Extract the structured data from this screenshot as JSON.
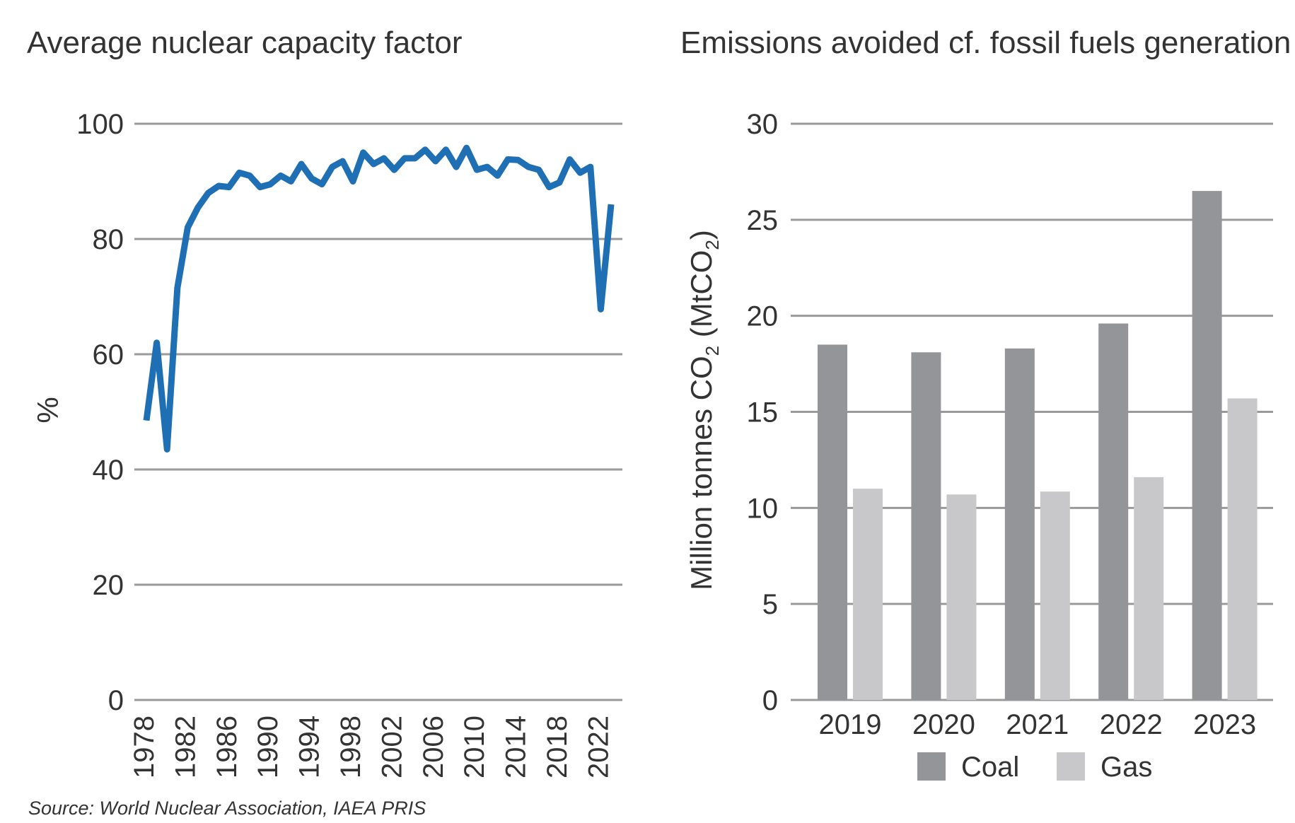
{
  "source": "Source: World Nuclear Association, IAEA PRIS",
  "chart_data": [
    {
      "type": "line",
      "title": "Average nuclear capacity factor",
      "xlabel": "",
      "ylabel": "%",
      "ylim": [
        0,
        100
      ],
      "yticks": [
        "0",
        "20",
        "40",
        "60",
        "80",
        "100"
      ],
      "xticks": [
        "1978",
        "1982",
        "1986",
        "1990",
        "1994",
        "1998",
        "2002",
        "2006",
        "2010",
        "2014",
        "2018",
        "2022"
      ],
      "x": [
        1978,
        1979,
        1980,
        1981,
        1982,
        1983,
        1984,
        1985,
        1986,
        1987,
        1988,
        1989,
        1990,
        1991,
        1992,
        1993,
        1994,
        1995,
        1996,
        1997,
        1998,
        1999,
        2000,
        2001,
        2002,
        2003,
        2004,
        2005,
        2006,
        2007,
        2008,
        2009,
        2010,
        2011,
        2012,
        2013,
        2014,
        2015,
        2016,
        2017,
        2018,
        2019,
        2020,
        2021,
        2022,
        2023
      ],
      "series": [
        {
          "values": [
            48.5,
            62.0,
            43.5,
            71.5,
            82.0,
            85.5,
            88.0,
            89.2,
            89.0,
            91.5,
            91.0,
            89.0,
            89.5,
            91.0,
            90.0,
            93.0,
            90.5,
            89.5,
            92.5,
            93.5,
            90.0,
            95.0,
            93.0,
            94.0,
            92.0,
            94.0,
            94.0,
            95.5,
            93.5,
            95.5,
            92.5,
            95.8,
            92.0,
            92.5,
            91.0,
            93.8,
            93.7,
            92.5,
            92.0,
            89.0,
            89.8,
            93.8,
            91.5,
            92.5,
            67.8,
            86.0
          ],
          "color": "#1f6fb5"
        }
      ],
      "grid": true
    },
    {
      "type": "bar",
      "title": "Emissions avoided cf. fossil fuels generation",
      "xlabel": "",
      "ylabel_main": "Million tonnes CO",
      "ylabel_sub1": "2",
      "ylabel_mid": " (MtCO",
      "ylabel_sub2": "2",
      "ylabel_end": ")",
      "ylim": [
        0,
        30
      ],
      "yticks": [
        "0",
        "5",
        "10",
        "15",
        "20",
        "25",
        "30"
      ],
      "categories": [
        "2019",
        "2020",
        "2021",
        "2022",
        "2023"
      ],
      "series": [
        {
          "name": "Coal",
          "values": [
            18.5,
            18.1,
            18.3,
            19.6,
            26.5
          ],
          "color": "#939598"
        },
        {
          "name": "Gas",
          "values": [
            11.0,
            10.7,
            10.85,
            11.6,
            15.7
          ],
          "color": "#c8c8ca"
        }
      ],
      "legend": "bottom",
      "grid": true
    }
  ]
}
